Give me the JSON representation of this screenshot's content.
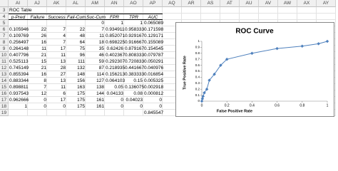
{
  "columns": [
    "AI",
    "AJ",
    "AK",
    "AL",
    "AM",
    "AN",
    "AO",
    "AP",
    "AQ",
    "AR",
    "AS",
    "AT",
    "AU",
    "AV",
    "AW",
    "AX",
    "AY"
  ],
  "row_numbers": [
    3,
    4,
    5,
    6,
    7,
    8,
    9,
    10,
    11,
    12,
    13,
    14,
    15,
    16,
    17,
    18,
    19
  ],
  "table": {
    "title": "ROC Table",
    "header": [
      "p-Pred",
      "Failure",
      "Success",
      "Fail-Cum",
      "Suc-Cum",
      "FPR",
      "TPR",
      "AUC"
    ],
    "rows": [
      [
        null,
        null,
        null,
        null,
        "0",
        "1",
        "1",
        "0.065089"
      ],
      [
        "0.105946",
        "22",
        "7",
        "22",
        "7",
        "0.934911",
        "0.958333",
        "0.171598"
      ],
      [
        "0.109769",
        "26",
        "4",
        "48",
        "11",
        "0.852071",
        "0.929167",
        "0.129171"
      ],
      [
        "0.256497",
        "16",
        "7",
        "64",
        "18",
        "0.698225",
        "0.916667",
        "0.155089"
      ],
      [
        "0.264148",
        "11",
        "17",
        "75",
        "35",
        "0.62426",
        "0.879167",
        "0.154545"
      ],
      [
        "0.407796",
        "21",
        "11",
        "96",
        "46",
        "0.402367",
        "0.808333",
        "0.079787"
      ],
      [
        "0.525113",
        "15",
        "13",
        "111",
        "59",
        "0.292307",
        "0.720833",
        "0.050291"
      ],
      [
        "0.745149",
        "21",
        "28",
        "132",
        "87",
        "0.218935",
        "0.441667",
        "0.040976"
      ],
      [
        "0.855394",
        "16",
        "27",
        "148",
        "114",
        "0.156213",
        "0.383333",
        "0.016854"
      ],
      [
        "0.883344",
        "8",
        "13",
        "156",
        "127",
        "0.064103",
        "0.15",
        "0.005325"
      ],
      [
        "0.898811",
        "7",
        "11",
        "163",
        "138",
        "0.05",
        "0.136075",
        "0.002918"
      ],
      [
        "0.937543",
        "12",
        "6",
        "175",
        "144",
        "0.04133",
        "0.08",
        "0.000812"
      ],
      [
        "0.962666",
        "0",
        "17",
        "175",
        "161",
        "0",
        "0.04023",
        "0"
      ],
      [
        "1",
        "0",
        "0",
        "175",
        "161",
        "0",
        "0",
        "0"
      ],
      [
        null,
        null,
        null,
        null,
        null,
        null,
        null,
        "0.845547"
      ]
    ]
  },
  "chart_data": {
    "type": "scatter",
    "title": "ROC Curve",
    "x_label": "False Positive Rate",
    "y_label": "True Positive Rate",
    "color": "#4f81bd",
    "x": [
      0,
      0.005,
      0.01,
      0.02,
      0.04,
      0.06,
      0.1,
      0.15,
      0.2,
      0.4,
      0.6,
      0.8,
      0.93,
      1
    ],
    "values": [
      0,
      0.04,
      0.08,
      0.14,
      0.2,
      0.35,
      0.45,
      0.6,
      0.7,
      0.8,
      0.88,
      0.92,
      0.96,
      1
    ],
    "xlim": [
      0,
      1
    ],
    "xticks": [
      0,
      0.2,
      0.4,
      0.6,
      0.8,
      1
    ],
    "ylim": [
      0,
      1
    ],
    "yticks": [
      0,
      0.1,
      0.2,
      0.3,
      0.4,
      0.5,
      0.6,
      0.7,
      0.8,
      0.9,
      1
    ]
  }
}
